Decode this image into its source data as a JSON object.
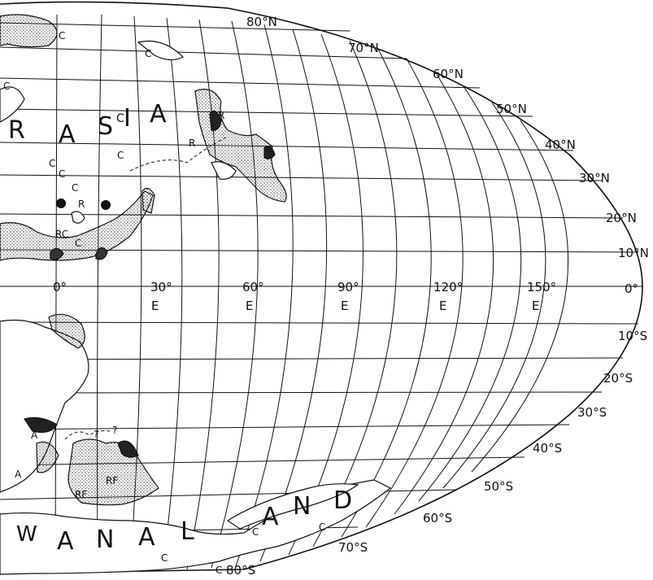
{
  "map": {
    "lat_labels_north": [
      "80°N",
      "70°N",
      "60°N",
      "50°N",
      "40°N",
      "30°N",
      "20°N",
      "10°N"
    ],
    "equator_label": "0°",
    "lat_labels_south": [
      "10°S",
      "20°S",
      "30°S",
      "40°S",
      "50°S",
      "60°S",
      "70°S",
      "80°S"
    ],
    "lon_labels": [
      "0°",
      "30°",
      "60°",
      "90°",
      "120°",
      "150°"
    ],
    "east_hemisphere_letter": "E",
    "continent_north_letters": [
      "R",
      "A",
      "S",
      "C",
      "I",
      "A"
    ],
    "continent_south_letters": [
      "W",
      "A",
      "N",
      "A",
      "L",
      "A",
      "N",
      "D"
    ],
    "site_marks": [
      "C",
      "C",
      "C",
      "C",
      "C",
      "C",
      "C",
      "R",
      "R",
      "RC",
      "C",
      "R",
      "A",
      "A",
      "RF",
      "RF",
      "?",
      "?",
      "C",
      "C",
      "C",
      "C"
    ],
    "colors": {
      "ink": "#111111",
      "paper": "#ffffff",
      "stipple": "#333333"
    }
  }
}
